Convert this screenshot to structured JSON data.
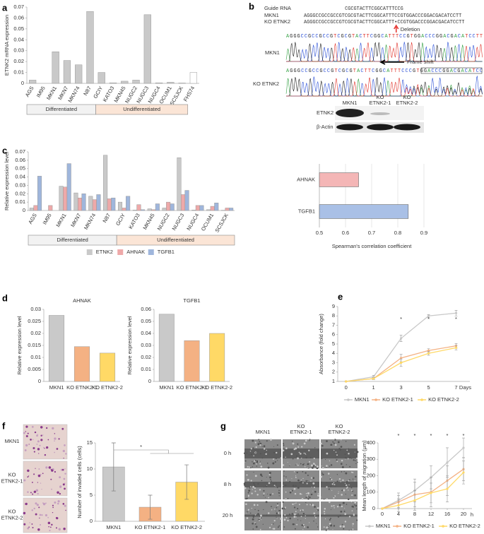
{
  "chart_data": [
    {
      "type": "bar",
      "panel_label": "a",
      "ylabel": "ETNK2 mRNA expression",
      "categories": [
        "AGS",
        "IM95",
        "MKN1",
        "MKN7",
        "MKN74",
        "N87",
        "GCIY",
        "KATO3",
        "MKN45",
        "NUGC2",
        "NUGC3",
        "NUGC4",
        "OCUM1",
        "SCSJCK",
        "FHS74"
      ],
      "values": [
        0.003,
        0,
        0.029,
        0.021,
        0.017,
        0.066,
        0.01,
        0.0005,
        0.002,
        0.003,
        0.063,
        0.0005,
        0.001,
        0.0003,
        0.01
      ],
      "bar_colors": [
        "#c9c9c9",
        "#c9c9c9",
        "#c9c9c9",
        "#c9c9c9",
        "#c9c9c9",
        "#c9c9c9",
        "#c9c9c9",
        "#c9c9c9",
        "#c9c9c9",
        "#c9c9c9",
        "#c9c9c9",
        "#c9c9c9",
        "#c9c9c9",
        "#c9c9c9",
        "#ffffff"
      ],
      "ylim": [
        0,
        0.07
      ],
      "yticks": [
        0,
        0.01,
        0.02,
        0.03,
        0.04,
        0.05,
        0.06,
        0.07
      ],
      "grid": false,
      "label_rotation": -60,
      "groups": [
        {
          "label": "Differentiated",
          "count": 6,
          "color": "#f2f2f2"
        },
        {
          "label": "Undifferentiated",
          "count": 8,
          "color": "#fbe5d6"
        }
      ]
    },
    {
      "type": "bar",
      "panel_label": "c",
      "ylabel": "Relative expression level",
      "categories": [
        "AGS",
        "IM95",
        "MKN1",
        "MKN7",
        "MKN74",
        "N87",
        "GCIY",
        "KATO3",
        "MKN45",
        "NUGC2",
        "NUGC3",
        "NUGC4",
        "OCUM1",
        "SCSJCK"
      ],
      "series": [
        {
          "name": "ETNK2",
          "color": "#c9c9c9",
          "values": [
            0.003,
            0,
            0.029,
            0.021,
            0.017,
            0.066,
            0.01,
            0.0005,
            0.002,
            0.003,
            0.063,
            0.0005,
            0.001,
            0.0003
          ]
        },
        {
          "name": "AHNAK",
          "color": "#eea9a9",
          "values": [
            0.006,
            0.006,
            0.028,
            0.015,
            0.013,
            0.014,
            0.003,
            0.007,
            0.001,
            0.01,
            0.019,
            0.006,
            0.005,
            0.003
          ]
        },
        {
          "name": "TGFB1",
          "color": "#9fb6dc",
          "values": [
            0.041,
            0,
            0.056,
            0.02,
            0.019,
            0.015,
            0.017,
            0.001,
            0.008,
            0.008,
            0.024,
            0.006,
            0.009,
            0.003
          ]
        }
      ],
      "ylim": [
        0,
        0.07
      ],
      "yticks": [
        0,
        0.01,
        0.02,
        0.03,
        0.04,
        0.05,
        0.06,
        0.07
      ],
      "grid": false,
      "label_rotation": -60,
      "groups": [
        {
          "label": "Differentiated",
          "count": 6,
          "color": "#f2f2f2"
        },
        {
          "label": "Undifferentiated",
          "count": 8,
          "color": "#fbe5d6"
        }
      ],
      "legend": "bottom"
    },
    {
      "type": "hbar",
      "xlabel": "Spearman's correlation coefficient",
      "categories": [
        "AHNAK",
        "TGFB1"
      ],
      "values": [
        0.65,
        0.84
      ],
      "bar_colors": [
        "#f4b6b6",
        "#a9c0e6"
      ],
      "xlim": [
        0.5,
        0.9
      ],
      "xticks": [
        0.5,
        0.6,
        0.7,
        0.8,
        0.9
      ],
      "grid": true
    },
    {
      "type": "bar",
      "panel_label": "d",
      "title": "AHNAK",
      "ylabel": "Relative expression level",
      "categories": [
        "MKN1",
        "KO ETNK2-1",
        "KO ETNK2-2"
      ],
      "values": [
        0.0275,
        0.0145,
        0.0118
      ],
      "bar_colors": [
        "#c9c9c9",
        "#f4b183",
        "#ffd966"
      ],
      "ylim": [
        0,
        0.03
      ],
      "yticks": [
        0,
        0.005,
        0.01,
        0.015,
        0.02,
        0.025,
        0.03
      ],
      "grid": false,
      "label_rotation": 0
    },
    {
      "type": "bar",
      "title": "TGFB1",
      "ylabel": "Relative expression level",
      "categories": [
        "MKN1",
        "KO ETNK2-1",
        "KO ETNK2-2"
      ],
      "values": [
        0.056,
        0.034,
        0.04
      ],
      "bar_colors": [
        "#c9c9c9",
        "#f4b183",
        "#ffd966"
      ],
      "ylim": [
        0,
        0.06
      ],
      "yticks": [
        0,
        0.01,
        0.02,
        0.03,
        0.04,
        0.05,
        0.06
      ],
      "grid": false,
      "label_rotation": 0
    },
    {
      "type": "line",
      "panel_label": "e",
      "ylabel": "Absorbance (fold change)",
      "xlabel": "Days",
      "categories": [
        "0",
        "1",
        "3",
        "5",
        "7"
      ],
      "series": [
        {
          "name": "MKN1",
          "color": "#c8c8c8",
          "values": [
            1,
            1.5,
            5.6,
            8.0,
            8.3
          ],
          "errors": [
            0,
            0.15,
            0.35,
            0.15,
            0.3
          ]
        },
        {
          "name": "KO ETNK2-1",
          "color": "#f4b183",
          "values": [
            1,
            1.3,
            3.5,
            4.3,
            4.8
          ],
          "errors": [
            0,
            0.1,
            0.4,
            0.2,
            0.25
          ]
        },
        {
          "name": "KO ETNK2-2",
          "color": "#ffd966",
          "values": [
            1,
            1.3,
            3.0,
            4.0,
            4.6
          ],
          "errors": [
            0,
            0.1,
            0.4,
            0.2,
            0.25
          ]
        }
      ],
      "ylim": [
        1,
        9
      ],
      "yticks": [
        1,
        2,
        3,
        4,
        5,
        6,
        7,
        8,
        9
      ],
      "grid": false,
      "significance": [
        null,
        null,
        "*",
        "*",
        "*"
      ],
      "legend": "bottom"
    },
    {
      "type": "bar",
      "panel_label": "f",
      "ylabel": "Number of invaded cells (cells)",
      "categories": [
        "MKN1",
        "KO ETNK2-1",
        "KO ETNK2-2"
      ],
      "values": [
        10.4,
        2.7,
        7.5
      ],
      "errors": [
        4.6,
        2.3,
        3.3
      ],
      "bar_colors": [
        "#c9c9c9",
        "#f4b183",
        "#ffd966"
      ],
      "ylim": [
        0,
        15
      ],
      "yticks": [
        0,
        5,
        10,
        15
      ],
      "grid": false,
      "label_rotation": 0,
      "significance_label": "*"
    },
    {
      "type": "line",
      "panel_label": "g",
      "ylabel": "Mean length of migration (μm)",
      "xlabel": "h",
      "x": [
        0,
        4,
        8,
        12,
        16,
        20
      ],
      "series": [
        {
          "name": "MKN1",
          "color": "#c8c8c8",
          "values": [
            0,
            50,
            110,
            190,
            280,
            370
          ],
          "errors": [
            0,
            45,
            70,
            70,
            90,
            60
          ]
        },
        {
          "name": "KO ETNK2-1",
          "color": "#f4b183",
          "values": [
            0,
            40,
            85,
            100,
            170,
            240
          ],
          "errors": [
            0,
            40,
            75,
            90,
            90,
            70
          ]
        },
        {
          "name": "KO ETNK2-2",
          "color": "#ffd966",
          "values": [
            0,
            20,
            50,
            95,
            120,
            220
          ],
          "errors": [
            0,
            40,
            60,
            60,
            80,
            70
          ]
        }
      ],
      "xlim": [
        0,
        20
      ],
      "xticks": [
        0,
        4,
        8,
        12,
        16,
        20
      ],
      "ylim": [
        0,
        400
      ],
      "yticks": [
        0,
        100,
        200,
        300,
        400
      ],
      "grid": false,
      "significance": [
        null,
        "*",
        "*",
        "*",
        "*",
        "*"
      ],
      "legend": "bottom"
    }
  ],
  "panel_b": {
    "panel_label": "b",
    "alignment": [
      {
        "label": "Guide RNA",
        "sequence": "CGCGTACTTCGGCATTTCCG"
      },
      {
        "label": "MKN1",
        "sequence": "AGGGCCGCCGCCGTCGCGTACTTCGGCATTTCCGTGGACCCGGACGACATCCTT"
      },
      {
        "label": "KO ETNK2",
        "sequence": "AGGGCCGCCGCCGTCGCGTACTTCGGCATTT•CCGTGGACCCGGACGACATCCTT"
      }
    ],
    "deletion_label": "Deletion",
    "frame_shift_label": "Frame shift",
    "chromatograms": [
      {
        "label": "MKN1",
        "sequence": "AGGGCCGCCGCCGTCGCGTACTTCGGCATTTCCGTGGACCCGGACGACATCCTT"
      },
      {
        "label": "KO ETNK2",
        "sequence": "AGGGCCGCCGCCGTCGCGTACTTCGGCATTTCCCGTGGACCCGGACGACATCC"
      }
    ],
    "blot": {
      "columns": [
        [
          "MKN1"
        ],
        [
          "KO",
          "ETNK2-1"
        ],
        [
          "KO",
          "ETNK2-2"
        ]
      ],
      "rows": [
        "ETNK2",
        "β-Actin"
      ]
    }
  },
  "panel_f": {
    "labels": [
      [
        "MKN1"
      ],
      [
        "KO",
        "ETNK2-1"
      ],
      [
        "KO",
        "ETNK2-2"
      ]
    ]
  },
  "panel_g": {
    "columns": [
      [
        "MKN1"
      ],
      [
        "KO",
        "ETNK2-1"
      ],
      [
        "KO",
        "ETNK2-2"
      ]
    ],
    "rows": [
      "0 h",
      "8 h",
      "20 h"
    ]
  }
}
